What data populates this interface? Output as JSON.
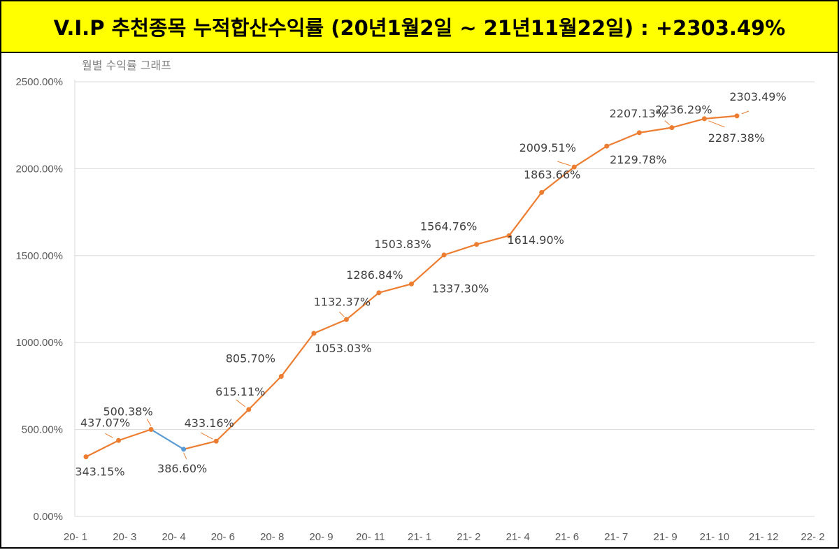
{
  "banner": {
    "title": "V.I.P 추천종목 누적합산수익률 (20년1월2일 ~ 21년11월22일) : +2303.49%"
  },
  "colors": {
    "banner_bg": "#ffff00",
    "line": "#ed7d31",
    "line_segment_alt": "#5b9bd5",
    "grid": "#d9d9d9"
  },
  "chart_data": {
    "type": "line",
    "title": "월별 수익률 그래프",
    "grid": true,
    "ylim": [
      0,
      2500
    ],
    "y_ticks": [
      0,
      500,
      1000,
      1500,
      2000,
      2500
    ],
    "y_tick_labels": [
      "0.00%",
      "500.00%",
      "1000.00%",
      "1500.00%",
      "2000.00%",
      "2500.00%"
    ],
    "x_tick_labels": [
      "20- 1",
      "20- 3",
      "20- 4",
      "20- 6",
      "20- 8",
      "20- 9",
      "20- 11",
      "21- 1",
      "21- 2",
      "21- 4",
      "21- 6",
      "21- 7",
      "21- 9",
      "21- 10",
      "21- 12",
      "22- 2"
    ],
    "series": [
      {
        "values": [
          343.15,
          437.07,
          500.38,
          386.6,
          433.16,
          615.11,
          805.7,
          1053.03,
          1132.37,
          1286.84,
          1337.3,
          1503.83,
          1564.76,
          1614.9,
          1863.66,
          2009.51,
          2129.78,
          2207.13,
          2236.29,
          2287.38,
          2303.49
        ],
        "labels": [
          "343.15%",
          "437.07%",
          "500.38%",
          "386.60%",
          "433.16%",
          "615.11%",
          "805.70%",
          "1053.03%",
          "1132.37%",
          "1286.84%",
          "1337.30%",
          "1503.83%",
          "1564.76%",
          "1614.90%",
          "1863.66%",
          "2009.51%",
          "2129.78%",
          "2207.13%",
          "2236.29%",
          "2287.38%",
          "2303.49%"
        ]
      }
    ]
  }
}
